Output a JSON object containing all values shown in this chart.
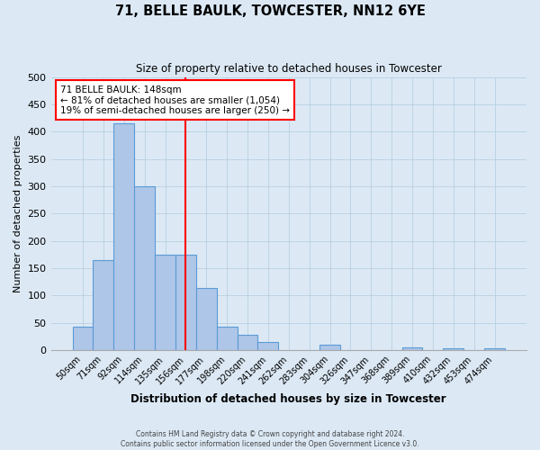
{
  "title": "71, BELLE BAULK, TOWCESTER, NN12 6YE",
  "subtitle": "Size of property relative to detached houses in Towcester",
  "xlabel": "Distribution of detached houses by size in Towcester",
  "ylabel": "Number of detached properties",
  "bin_labels": [
    "50sqm",
    "71sqm",
    "92sqm",
    "114sqm",
    "135sqm",
    "156sqm",
    "177sqm",
    "198sqm",
    "220sqm",
    "241sqm",
    "262sqm",
    "283sqm",
    "304sqm",
    "326sqm",
    "347sqm",
    "368sqm",
    "389sqm",
    "410sqm",
    "432sqm",
    "453sqm",
    "474sqm"
  ],
  "bar_values": [
    42,
    165,
    415,
    300,
    175,
    175,
    113,
    43,
    28,
    15,
    0,
    0,
    10,
    0,
    0,
    0,
    5,
    0,
    3,
    0,
    3
  ],
  "bar_color": "#aec6e8",
  "bar_edge_color": "#5b9bd5",
  "background_color": "#dce9f5",
  "grid_color": "#b8cfe0",
  "vline_color": "red",
  "annotation_title": "71 BELLE BAULK: 148sqm",
  "annotation_line1": "← 81% of detached houses are smaller (1,054)",
  "annotation_line2": "19% of semi-detached houses are larger (250) →",
  "annotation_box_color": "white",
  "annotation_box_edge": "red",
  "footer_line1": "Contains HM Land Registry data © Crown copyright and database right 2024.",
  "footer_line2": "Contains public sector information licensed under the Open Government Licence v3.0.",
  "ylim": [
    0,
    500
  ],
  "yticks": [
    0,
    50,
    100,
    150,
    200,
    250,
    300,
    350,
    400,
    450,
    500
  ]
}
